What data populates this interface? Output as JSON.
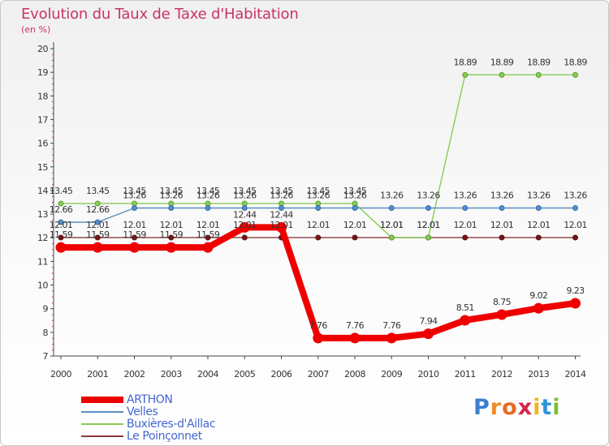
{
  "title": "Evolution du Taux de Taxe d'Habitation",
  "subtitle": "(en %)",
  "logo": {
    "text": "Proxiti"
  },
  "chart_data": {
    "type": "line",
    "title": "Evolution du Taux de Taxe d'Habitation",
    "ylabel": "(en %)",
    "xlabel": "",
    "x": [
      "2000",
      "2001",
      "2002",
      "2003",
      "2004",
      "2005",
      "2006",
      "2007",
      "2008",
      "2009",
      "2010",
      "2011",
      "2012",
      "2013",
      "2014"
    ],
    "ylim": [
      7,
      20
    ],
    "yticks": [
      "7",
      "8",
      "9",
      "10",
      "11",
      "12",
      "13",
      "14",
      "15",
      "16",
      "17",
      "18",
      "19",
      "20"
    ],
    "grid": false,
    "legend_position": "bottom-left",
    "series": [
      {
        "name": "ARTHON",
        "color": "#ee0000",
        "values": [
          11.59,
          11.59,
          11.59,
          11.59,
          11.59,
          12.44,
          12.44,
          7.76,
          7.76,
          7.76,
          7.94,
          8.51,
          8.75,
          9.02,
          9.23
        ],
        "labels": [
          "11.59",
          "11.59",
          "11.59",
          "11.59",
          "11.59",
          "12.44",
          "12.44",
          "7.76",
          "7.76",
          "7.76",
          "7.94",
          "8.51",
          "8.75",
          "9.02",
          "9.23"
        ]
      },
      {
        "name": "Velles",
        "color": "#5b8fbf",
        "values": [
          12.66,
          12.66,
          13.26,
          13.26,
          13.26,
          13.26,
          13.26,
          13.26,
          13.26,
          13.26,
          13.26,
          13.26,
          13.26,
          13.26,
          13.26
        ],
        "labels": [
          "12.66",
          "12.66",
          "13.26",
          "13.26",
          "13.26",
          "13.26",
          "13.26",
          "13.26",
          "13.26",
          "13.26",
          "13.26",
          "13.26",
          "13.26",
          "13.26",
          "13.26"
        ]
      },
      {
        "name": "Buxières-d'Aillac",
        "color": "#88cc55",
        "values": [
          13.45,
          13.45,
          13.45,
          13.45,
          13.45,
          13.45,
          13.45,
          13.45,
          13.45,
          12.01,
          12.01,
          18.89,
          18.89,
          18.89,
          18.89
        ],
        "labels": [
          "13.45",
          "13.45",
          "13.45",
          "13.45",
          "13.45",
          "13.45",
          "13.45",
          "13.45",
          "13.45",
          "12.01",
          "12.01",
          "18.89",
          "18.89",
          "18.89",
          "18.89"
        ]
      },
      {
        "name": "Le Poinçonnet",
        "color": "#8b3a3a",
        "values": [
          12.01,
          12.01,
          12.01,
          12.01,
          12.01,
          12.01,
          12.01,
          12.01,
          12.01,
          12.01,
          12.01,
          12.01,
          12.01,
          12.01,
          12.01
        ],
        "labels": [
          "12.01",
          "12.01",
          "12.01",
          "12.01",
          "12.01",
          "12.01",
          "12.01",
          "12.01",
          "12.01",
          "12.01",
          "12.01",
          "12.01",
          "12.01",
          "12.01",
          "12.01"
        ]
      }
    ]
  }
}
